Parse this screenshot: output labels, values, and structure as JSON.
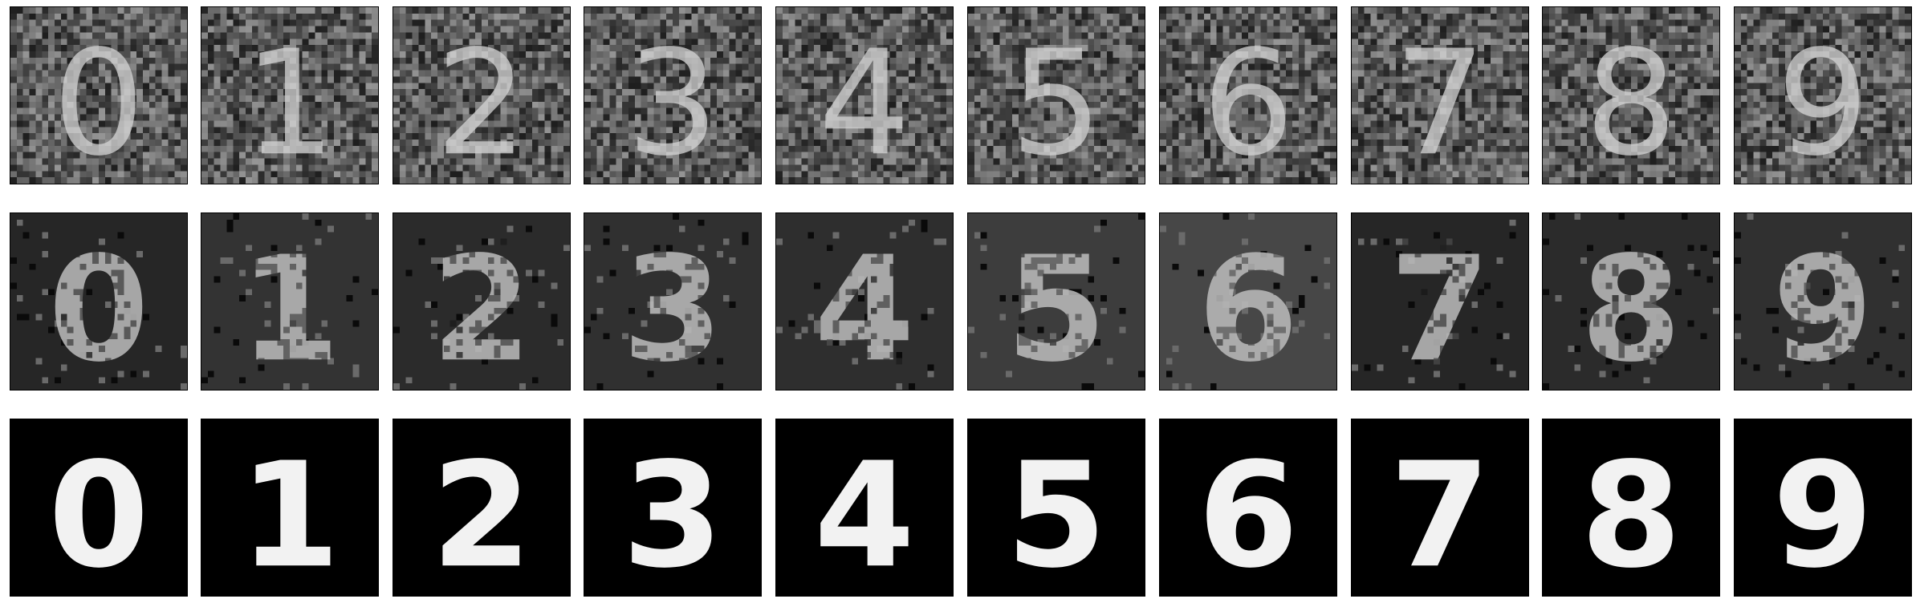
{
  "figure": {
    "rows": [
      {
        "name": "gaussian-noise-row",
        "style": "gaussian",
        "background": "#4a4a4a"
      },
      {
        "name": "salt-pepper-noise-row",
        "style": "speckle",
        "backgrounds": [
          "#262626",
          "#333333",
          "#2b2b2b",
          "#303030",
          "#2e2e2e",
          "#3d3d3d",
          "#474747",
          "#262626",
          "#2b2b2b",
          "#303030"
        ]
      },
      {
        "name": "clean-row",
        "style": "clean",
        "background": "#000000"
      }
    ],
    "digits": [
      "0",
      "1",
      "2",
      "3",
      "4",
      "5",
      "6",
      "7",
      "8",
      "9"
    ]
  }
}
